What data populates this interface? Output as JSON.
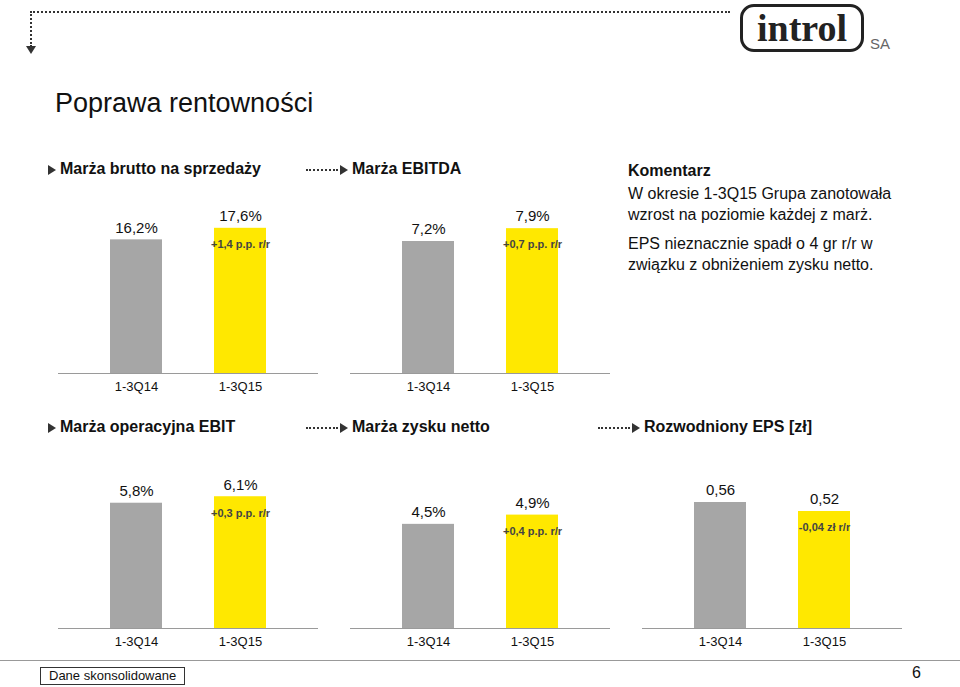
{
  "page": {
    "title": "Poprawa rentowności",
    "logo": {
      "name": "introl",
      "suffix": "SA"
    },
    "commentary": {
      "title": "Komentarz",
      "paragraphs": [
        "W okresie 1-3Q15 Grupa zanotowała wzrost na poziomie każdej z marż.",
        "EPS nieznacznie spadł o 4 gr r/r w związku z obniżeniem zysku netto."
      ]
    },
    "footer": "Dane skonsolidowane",
    "page_number": 6
  },
  "chart_data": [
    {
      "type": "bar",
      "title": "Marża brutto na sprzedaży",
      "categories": [
        "1-3Q14",
        "1-3Q15"
      ],
      "values": [
        16.2,
        17.6
      ],
      "value_labels": [
        "16,2%",
        "17,6%"
      ],
      "colors": [
        "#a6a6a6",
        "#ffe800"
      ],
      "ylim": [
        0,
        20
      ],
      "data_labels": true,
      "tick_labels": "x",
      "annotation": "+1,4 p.p. r/r"
    },
    {
      "type": "bar",
      "title": "Marża EBITDA",
      "categories": [
        "1-3Q14",
        "1-3Q15"
      ],
      "values": [
        7.2,
        7.9
      ],
      "value_labels": [
        "7,2%",
        "7,9%"
      ],
      "colors": [
        "#a6a6a6",
        "#ffe800"
      ],
      "ylim": [
        0,
        9
      ],
      "data_labels": true,
      "tick_labels": "x",
      "annotation": "+0,7 p.p. r/r"
    },
    {
      "type": "bar",
      "title": "Marża operacyjna EBIT",
      "categories": [
        "1-3Q14",
        "1-3Q15"
      ],
      "values": [
        5.8,
        6.1
      ],
      "value_labels": [
        "5,8%",
        "6,1%"
      ],
      "colors": [
        "#a6a6a6",
        "#ffe800"
      ],
      "ylim": [
        0,
        7.5
      ],
      "data_labels": true,
      "tick_labels": "x",
      "annotation": "+0,3 p.p. r/r"
    },
    {
      "type": "bar",
      "title": "Marża zysku netto",
      "categories": [
        "1-3Q14",
        "1-3Q15"
      ],
      "values": [
        4.5,
        4.9
      ],
      "value_labels": [
        "4,5%",
        "4,9%"
      ],
      "colors": [
        "#a6a6a6",
        "#ffe800"
      ],
      "ylim": [
        0,
        7
      ],
      "data_labels": true,
      "tick_labels": "x",
      "annotation": "+0,4 p.p. r/r"
    },
    {
      "type": "bar",
      "title": "Rozwodniony EPS [zł]",
      "categories": [
        "1-3Q14",
        "1-3Q15"
      ],
      "values": [
        0.56,
        0.52
      ],
      "value_labels": [
        "0,56",
        "0,52"
      ],
      "colors": [
        "#a6a6a6",
        "#ffe800"
      ],
      "ylim": [
        0,
        0.72
      ],
      "data_labels": true,
      "tick_labels": "x",
      "annotation": "-0,04 zł r/r"
    }
  ]
}
